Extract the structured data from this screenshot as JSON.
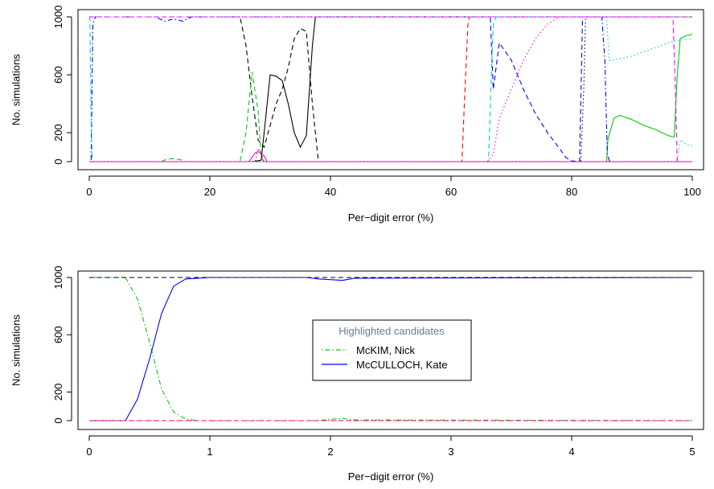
{
  "chart_data": [
    {
      "type": "line",
      "xlabel": "Per−digit error (%)",
      "ylabel": "No. simulations",
      "xlim": [
        0,
        100
      ],
      "ylim": [
        0,
        1000
      ],
      "xticks": [
        "0",
        "20",
        "40",
        "60",
        "80",
        "100"
      ],
      "yticks": [
        "0",
        "200",
        "600",
        "1000"
      ],
      "grid": false,
      "legend": null,
      "series": [
        {
          "color": "#000000",
          "dash": "solid",
          "x": [
            0,
            27,
            28.5,
            29,
            30,
            31,
            32,
            33,
            34,
            35,
            36,
            37,
            37.5,
            100
          ],
          "y": [
            0,
            0,
            10,
            200,
            600,
            590,
            560,
            400,
            200,
            100,
            180,
            800,
            1000,
            1000
          ]
        },
        {
          "color": "#000000",
          "dash": "dashed",
          "x": [
            0,
            25,
            26,
            27,
            28,
            29,
            30,
            31,
            32,
            33,
            34,
            35,
            36,
            37,
            38,
            100
          ],
          "y": [
            1000,
            1000,
            800,
            450,
            150,
            100,
            250,
            400,
            500,
            650,
            850,
            920,
            900,
            400,
            0,
            0
          ]
        },
        {
          "color": "#000000",
          "dash": "dotted",
          "x": [
            0,
            81.5,
            82,
            82.3,
            100
          ],
          "y": [
            0,
            0,
            500,
            1000,
            1000
          ]
        },
        {
          "color": "#ff0000",
          "dash": "dashed",
          "x": [
            0,
            61.8,
            62.3,
            62.8,
            63,
            100
          ],
          "y": [
            0,
            0,
            500,
            950,
            1000,
            1000
          ]
        },
        {
          "color": "#00cc00",
          "dash": "solid",
          "x": [
            0,
            85.8,
            86,
            87,
            88,
            90,
            92,
            94,
            96,
            97,
            97.5,
            98,
            99,
            100
          ],
          "y": [
            0,
            0,
            150,
            300,
            320,
            290,
            250,
            220,
            180,
            170,
            600,
            850,
            870,
            880
          ]
        },
        {
          "color": "#00cc00",
          "dash": "dashed",
          "x": [
            0,
            12,
            13,
            14,
            15,
            16,
            25,
            26,
            27,
            28,
            28.5,
            29,
            100
          ],
          "y": [
            0,
            0,
            20,
            20,
            15,
            0,
            0,
            200,
            620,
            350,
            30,
            0,
            0
          ]
        },
        {
          "color": "#0000ff",
          "dash": "dashed",
          "x": [
            0,
            66.5,
            67,
            68,
            70,
            72,
            74,
            76,
            78,
            79,
            80,
            81.3,
            81.8,
            100
          ],
          "y": [
            1000,
            1000,
            500,
            820,
            700,
            500,
            330,
            200,
            90,
            30,
            5,
            0,
            1000,
            1000
          ]
        },
        {
          "color": "#0000ff",
          "dash": "dotdash",
          "x": [
            0,
            0.3,
            0.6,
            1,
            11,
            12.5,
            14,
            15.5,
            17,
            85,
            85.5,
            85.9,
            86.3,
            100
          ],
          "y": [
            0,
            0,
            950,
            1000,
            1000,
            970,
            985,
            970,
            1000,
            1000,
            700,
            50,
            0,
            0
          ]
        },
        {
          "color": "#00cccc",
          "dash": "dashed",
          "x": [
            0,
            0.1,
            0.3,
            0.5,
            66.2,
            66.6,
            67,
            67.5,
            100
          ],
          "y": [
            1000,
            1000,
            300,
            0,
            0,
            500,
            950,
            1000,
            1000
          ]
        },
        {
          "color": "#00cccc",
          "dash": "dotted",
          "x": [
            0,
            85.8,
            86.2,
            88,
            90,
            92,
            94,
            96,
            98,
            100
          ],
          "y": [
            1000,
            1000,
            700,
            710,
            730,
            760,
            790,
            820,
            840,
            850
          ]
        },
        {
          "color": "#00cccc",
          "dash": "dotted",
          "x": [
            0,
            97.5,
            98,
            99,
            100
          ],
          "y": [
            0,
            0,
            150,
            120,
            110
          ]
        },
        {
          "color": "#ff00ff",
          "dash": "solid",
          "x": [
            0,
            26.5,
            27.5,
            28,
            29,
            29.5,
            100
          ],
          "y": [
            0,
            0,
            60,
            70,
            40,
            0,
            0
          ]
        },
        {
          "color": "#ff00ff",
          "dash": "dotted",
          "x": [
            0,
            66,
            67,
            68,
            70,
            72,
            74,
            76,
            78,
            100
          ],
          "y": [
            0,
            0,
            50,
            300,
            500,
            700,
            850,
            950,
            1000,
            1000
          ]
        },
        {
          "color": "#ff00ff",
          "dash": "dashed",
          "x": [
            0,
            96.8,
            97.2,
            97.5,
            100
          ],
          "y": [
            1000,
            1000,
            500,
            0,
            0
          ]
        },
        {
          "color": "#cc0000",
          "dash": "dotted",
          "x": [
            0,
            27.5,
            28,
            28.5,
            29,
            100
          ],
          "y": [
            0,
            0,
            90,
            60,
            0,
            0
          ]
        }
      ]
    },
    {
      "type": "line",
      "xlabel": "Per−digit error (%)",
      "ylabel": "No. simulations",
      "xlim": [
        0,
        5
      ],
      "ylim": [
        0,
        1000
      ],
      "xticks": [
        "0",
        "1",
        "2",
        "3",
        "4",
        "5"
      ],
      "yticks": [
        "0",
        "200",
        "600",
        "1000"
      ],
      "grid": false,
      "legend": {
        "title": "Highlighted candidates",
        "position": "center",
        "entries": [
          {
            "label": "McKIM, Nick",
            "color": "#00cc00",
            "dash": "dotdash"
          },
          {
            "label": "McCULLOCH, Kate",
            "color": "#0000ff",
            "dash": "solid"
          }
        ]
      },
      "series": [
        {
          "name": "McKIM, Nick",
          "color": "#00cc00",
          "dash": "dotdash",
          "x": [
            0,
            0.3,
            0.4,
            0.5,
            0.6,
            0.7,
            0.8,
            0.9,
            1.9,
            2.0,
            2.1,
            2.2,
            5
          ],
          "y": [
            1000,
            1000,
            850,
            550,
            220,
            60,
            10,
            0,
            0,
            10,
            15,
            5,
            0
          ]
        },
        {
          "name": "McCULLOCH, Kate",
          "color": "#0000ff",
          "dash": "solid",
          "x": [
            0,
            0.3,
            0.4,
            0.5,
            0.6,
            0.7,
            0.8,
            0.9,
            1.0,
            1.8,
            1.9,
            2.0,
            2.1,
            2.2,
            5
          ],
          "y": [
            0,
            0,
            150,
            430,
            750,
            940,
            990,
            995,
            1000,
            1000,
            990,
            985,
            980,
            995,
            1000
          ]
        },
        {
          "color": "#000000",
          "dash": "dashed",
          "x": [
            0,
            5
          ],
          "y": [
            1000,
            1000
          ]
        },
        {
          "color": "#00cccc",
          "dash": "dashed",
          "x": [
            0,
            5
          ],
          "y": [
            0,
            0
          ]
        },
        {
          "color": "#ff0000",
          "dash": "dashed",
          "x": [
            0,
            5
          ],
          "y": [
            0,
            0
          ]
        },
        {
          "color": "#ff00ff",
          "dash": "dotted",
          "x": [
            0,
            5
          ],
          "y": [
            0,
            0
          ]
        }
      ]
    }
  ]
}
